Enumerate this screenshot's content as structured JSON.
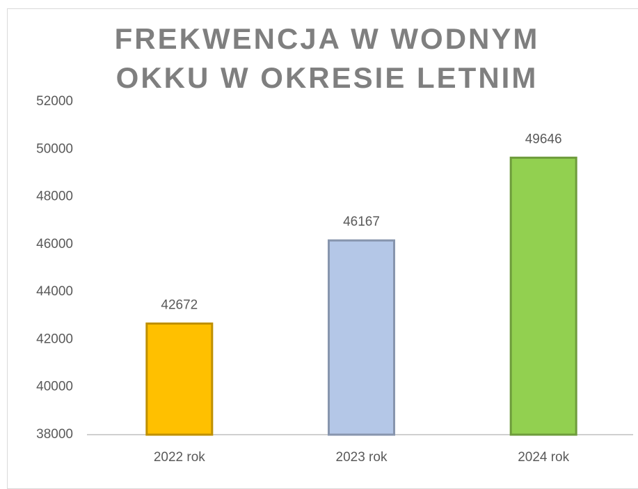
{
  "chart_data": {
    "type": "bar",
    "title": "FREKWENCJA W WODNYM OKKU W OKRESIE LETNIM",
    "categories": [
      "2022 rok",
      "2023 rok",
      "2024 rok"
    ],
    "values": [
      42672,
      46167,
      49646
    ],
    "colors": [
      "#ffc000",
      "#b4c7e7",
      "#92d050"
    ],
    "ylim": [
      38000,
      52000
    ],
    "yticks": [
      38000,
      40000,
      42000,
      44000,
      46000,
      48000,
      50000,
      52000
    ],
    "grid": false
  }
}
